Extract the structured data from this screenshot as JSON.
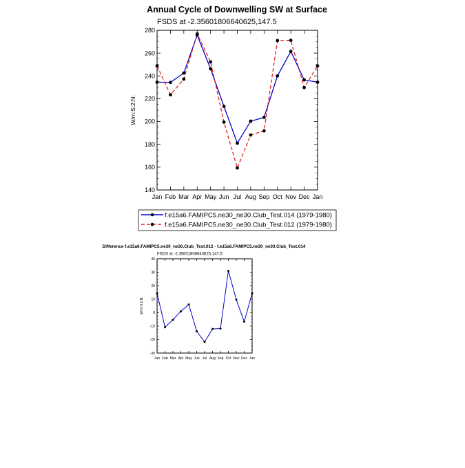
{
  "colors": {
    "control": "#0000cc",
    "test": "#e02020",
    "marker": "#000000",
    "diff": "#0000cc"
  },
  "chart_data": [
    {
      "type": "line",
      "title": "Annual Cycle of Downwelling SW at Surface",
      "subtitle": "FSDS at -2.35601806640625,147.5",
      "xlabel": "",
      "ylabel": "W/m:S:2:N:",
      "categories": [
        "Jan",
        "Feb",
        "Mar",
        "Apr",
        "May",
        "Jun",
        "Jul",
        "Aug",
        "Sep",
        "Oct",
        "Nov",
        "Dec",
        "Jan"
      ],
      "ylim": [
        140,
        280
      ],
      "yticks": [
        140,
        160,
        180,
        200,
        220,
        240,
        260,
        280
      ],
      "legend_position": "below",
      "series": [
        {
          "name": "f.e15a6.FAMIPC5.ne30_ne30.Club_Test.014 (1979-1980)",
          "style": "solid",
          "color": "#0000cc",
          "values": [
            234.5,
            234.3,
            242.5,
            275.8,
            246.2,
            213.3,
            181.0,
            200.3,
            203.6,
            240.0,
            261.5,
            236.5,
            234.5
          ]
        },
        {
          "name": "f.e15a6.FAMIPC5.ne30_ne30.Club_Test.012 (1979-1980)",
          "style": "dashed",
          "color": "#e02020",
          "values": [
            248.8,
            223.5,
            237.2,
            276.8,
            252.3,
            199.5,
            159.3,
            188.2,
            191.8,
            271.0,
            271.2,
            229.8,
            248.8
          ]
        }
      ]
    },
    {
      "type": "line",
      "title": "Difference f.e15a6.FAMIPC5.ne30_ne30.Club_Test.012 - f.e15a6.FAMIPC5.ne30_ne30.Club_Test.014",
      "subtitle": "FSDS at -2.35601806640625,147.5",
      "xlabel": "",
      "ylabel": "W/m:S:2:N:",
      "categories": [
        "Jan",
        "Feb",
        "Mar",
        "Apr",
        "May",
        "Jun",
        "Jul",
        "Aug",
        "Sep",
        "Oct",
        "Nov",
        "Dec",
        "Jan"
      ],
      "ylim": [
        -30,
        40
      ],
      "yticks": [
        -30,
        -20,
        -10,
        0,
        10,
        20,
        30,
        40
      ],
      "series": [
        {
          "style": "solid",
          "color": "#0000cc",
          "values": [
            14.3,
            -10.8,
            -5.3,
            1.0,
            6.1,
            -13.8,
            -21.7,
            -12.1,
            -11.8,
            31.0,
            9.7,
            -6.7,
            14.3
          ]
        }
      ]
    }
  ]
}
